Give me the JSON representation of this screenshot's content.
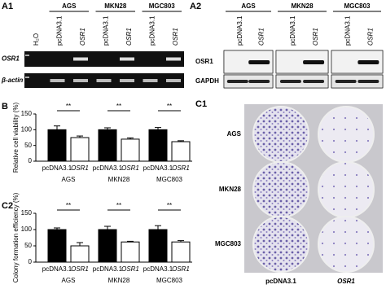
{
  "gel": {
    "label": "A1",
    "groups": [
      "AGS",
      "MKN28",
      "MGC803"
    ],
    "lanes": [
      "H₂O",
      "pcDNA3.1",
      "OSR1",
      "pcDNA3.1",
      "OSR1",
      "pcDNA3.1",
      "OSR1"
    ],
    "rows": [
      "OSR1",
      "β-actin"
    ]
  },
  "blot": {
    "label": "A2",
    "groups": [
      "AGS",
      "MKN28",
      "MGC803"
    ],
    "lanes": [
      "pcDNA3.1",
      "OSR1",
      "pcDNA3.1",
      "OSR1",
      "pcDNA3.1",
      "OSR1"
    ],
    "rows": [
      "OSR1",
      "GAPDH"
    ]
  },
  "plates": {
    "label": "C1",
    "rows": [
      "AGS",
      "MKN28",
      "MGC803"
    ],
    "columns": [
      "pcDNA3.1",
      "OSR1"
    ]
  },
  "chart_data": [
    {
      "type": "bar",
      "panel_label": "B",
      "y_label": "Relative cell viability (%)",
      "groups": [
        "AGS",
        "MKN28",
        "MGC803"
      ],
      "categories": [
        "pcDNA3.1",
        "OSR1",
        "pcDNA3.1",
        "OSR1",
        "pcDNA3.1",
        "OSR1"
      ],
      "values": [
        100,
        75,
        100,
        70,
        100,
        62
      ],
      "errors": [
        12,
        5,
        6,
        4,
        7,
        3
      ],
      "colors": [
        "#000000",
        "#ffffff",
        "#000000",
        "#ffffff",
        "#000000",
        "#ffffff"
      ],
      "significance": [
        "**",
        "**",
        "**"
      ],
      "ylim": [
        0,
        150
      ],
      "yticks": [
        0,
        50,
        100,
        150
      ]
    },
    {
      "type": "bar",
      "panel_label": "C2",
      "y_label": "Colony formation efficiency (%)",
      "groups": [
        "AGS",
        "MKN28",
        "MGC803"
      ],
      "categories": [
        "pcDNA3.1",
        "OSR1",
        "pcDNA3.1",
        "OSR1",
        "pcDNA3.1",
        "OSR1"
      ],
      "values": [
        100,
        50,
        100,
        62,
        100,
        62
      ],
      "errors": [
        5,
        10,
        10,
        2,
        12,
        4
      ],
      "colors": [
        "#000000",
        "#ffffff",
        "#000000",
        "#ffffff",
        "#000000",
        "#ffffff"
      ],
      "significance": [
        "**",
        "**",
        "**"
      ],
      "ylim": [
        0,
        150
      ],
      "yticks": [
        0,
        50,
        100,
        150
      ]
    }
  ]
}
